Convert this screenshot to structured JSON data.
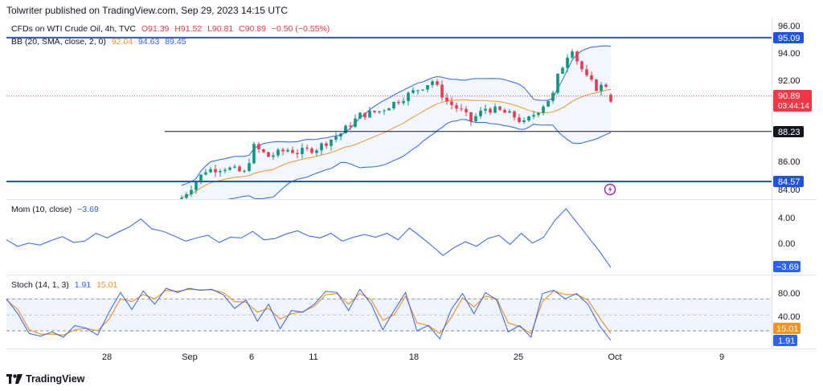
{
  "header": {
    "publisher": "Tolwriter published on TradingView.com, Sep 29, 2023 14:15 UTC"
  },
  "legend": {
    "symbol": "CFDs on WTI Crude Oil, 4h, TVC",
    "open": "O91.39",
    "high": "H91.52",
    "low": "L90.81",
    "close": "C90.89",
    "change": "−0.50 (−0.55%)",
    "bb_label": "BB (20, SMA, close, 2, 0)",
    "bb_basis": "92.04",
    "bb_upper": "94.63",
    "bb_lower": "89.45",
    "mom_label": "Mom (10, close)",
    "mom_value": "−3.69",
    "stoch_label": "Stoch (14, 1, 3)",
    "stoch_k": "1.91",
    "stoch_d": "15.01"
  },
  "price_axis": {
    "ticks": [
      "96.00",
      "94.00",
      "92.00",
      "86.00",
      "84.00"
    ],
    "badges": {
      "resistance": "95.09",
      "current": "90.89",
      "countdown": "03:44:14",
      "middle": "88.23",
      "support": "84.57"
    }
  },
  "mom_axis": {
    "ticks": [
      "4.00",
      "0.00"
    ],
    "badge": "−3.69"
  },
  "stoch_axis": {
    "ticks": [
      "80.00",
      "40.00"
    ],
    "badge_d": "15.01",
    "badge_k": "1.91"
  },
  "time_axis": {
    "labels": [
      "28",
      "Sep",
      "6",
      "11",
      "18",
      "25",
      "Oct",
      "9"
    ]
  },
  "footer": {
    "brand": "TradingView"
  },
  "colors": {
    "up": "#089981",
    "down": "#f23645",
    "bb_basis": "#f7931a",
    "bb_band": "#2962ff",
    "line_blue": "#2962ff",
    "stoch_k": "#2962ff",
    "stoch_d": "#f7931a",
    "level_line": "#1e53e5",
    "mid_line": "#131722"
  },
  "chart_data": [
    {
      "type": "candlestick",
      "name": "CFDs on WTI Crude Oil, 4h, TVC",
      "y_range": [
        83.8,
        97.0
      ],
      "x_labels": [
        "28",
        "Sep",
        "6",
        "11",
        "18",
        "25",
        "Oct",
        "9"
      ],
      "overlays": [
        "BB (20, SMA, close, 2, 0)"
      ],
      "horizontal_levels": [
        95.09,
        88.23,
        84.57
      ],
      "last": {
        "open": 91.39,
        "high": 91.52,
        "low": 90.81,
        "close": 90.89
      },
      "bb_last": {
        "basis": 92.04,
        "upper": 94.63,
        "lower": 89.45
      },
      "close_path": [
        [
          0,
          83.9
        ],
        [
          5,
          85.9
        ],
        [
          9,
          86.1
        ],
        [
          13,
          85.7
        ],
        [
          15,
          87.6
        ],
        [
          18,
          86.9
        ],
        [
          22,
          87.4
        ],
        [
          24,
          87.2
        ],
        [
          28,
          87.5
        ],
        [
          33,
          88.6
        ],
        [
          37,
          89.9
        ],
        [
          41,
          90.2
        ],
        [
          45,
          91.0
        ],
        [
          49,
          91.8
        ],
        [
          52,
          92.4
        ],
        [
          55,
          90.9
        ],
        [
          58,
          90.2
        ],
        [
          60,
          89.5
        ],
        [
          63,
          90.4
        ],
        [
          66,
          90.2
        ],
        [
          69,
          89.8
        ],
        [
          71,
          89.3
        ],
        [
          74,
          90.3
        ],
        [
          77,
          91.4
        ],
        [
          78,
          92.7
        ],
        [
          80,
          94.3
        ],
        [
          81,
          94.8
        ],
        [
          82,
          93.9
        ],
        [
          84,
          92.6
        ],
        [
          86,
          91.9
        ],
        [
          88,
          92.1
        ],
        [
          89,
          90.89
        ]
      ]
    },
    {
      "type": "line",
      "name": "Mom (10, close)",
      "y_range": [
        -4.5,
        6.0
      ],
      "last": -3.69,
      "values": [
        0.6,
        -0.4,
        0.1,
        -0.2,
        0.5,
        1.1,
        0.2,
        0.4,
        1.6,
        0.9,
        1.8,
        2.6,
        3.8,
        2.3,
        1.9,
        1.2,
        0.4,
        0.9,
        1.3,
        0.2,
        1.0,
        0.9,
        1.9,
        0.6,
        0.8,
        1.5,
        2.0,
        1.2,
        0.9,
        1.6,
        0.4,
        1.0,
        1.4,
        1.0,
        1.6,
        0.6,
        2.4,
        1.1,
        -0.3,
        -1.8,
        -0.6,
        0.3,
        -0.4,
        0.8,
        1.3,
        -0.1,
        1.6,
        0.1,
        1.0,
        3.6,
        5.4,
        3.2,
        1.0,
        -1.2,
        -3.69
      ]
    },
    {
      "type": "line",
      "name": "Stoch (14, 1, 3)",
      "y_range": [
        -10,
        115
      ],
      "levels": [
        80,
        50,
        20
      ],
      "series": [
        {
          "name": "K",
          "last": 1.91,
          "values": [
            80,
            52,
            15,
            10,
            18,
            8,
            30,
            25,
            12,
            55,
            92,
            60,
            95,
            70,
            100,
            92,
            100,
            96,
            98,
            88,
            62,
            78,
            38,
            70,
            24,
            58,
            55,
            70,
            94,
            92,
            58,
            98,
            70,
            22,
            58,
            92,
            20,
            30,
            5,
            60,
            90,
            52,
            92,
            78,
            18,
            30,
            8,
            90,
            96,
            80,
            90,
            70,
            30,
            1.91
          ]
        },
        {
          "name": "D",
          "last": 15.01,
          "values": [
            78,
            60,
            22,
            14,
            14,
            12,
            22,
            25,
            20,
            42,
            80,
            75,
            88,
            80,
            96,
            94,
            98,
            97,
            97,
            92,
            75,
            74,
            55,
            62,
            42,
            52,
            56,
            66,
            88,
            90,
            70,
            90,
            78,
            40,
            50,
            85,
            35,
            30,
            15,
            45,
            82,
            65,
            85,
            80,
            35,
            28,
            15,
            75,
            95,
            88,
            88,
            78,
            45,
            15.01
          ]
        }
      ]
    }
  ]
}
